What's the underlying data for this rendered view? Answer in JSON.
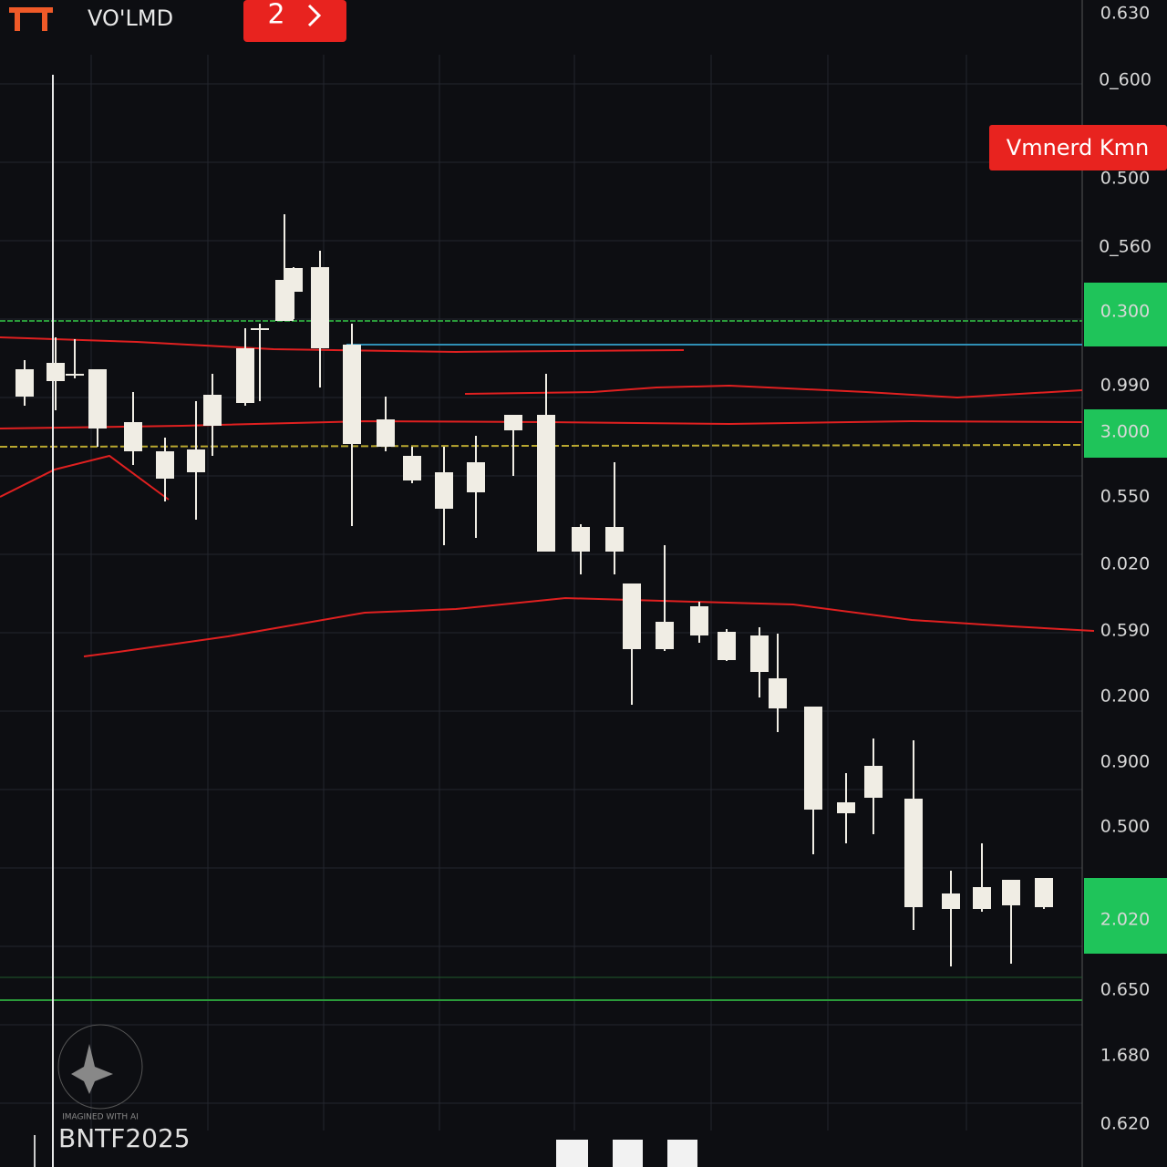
{
  "header": {
    "symbol": "VO'LMD",
    "badge": "2"
  },
  "price_badge": "Vmnerd Kmn",
  "price_axis": [
    "0.630",
    "0_600",
    "0.500",
    "0_560",
    "0.300",
    "0.990",
    "3.000",
    "0.550",
    "0.020",
    "0.590",
    "0.200",
    "0.900",
    "0.500",
    "2.020",
    "0.650",
    "1.680",
    "0.620"
  ],
  "footer": {
    "label": "BNTF2025"
  },
  "watermark": "IMAGINED WITH AI"
}
